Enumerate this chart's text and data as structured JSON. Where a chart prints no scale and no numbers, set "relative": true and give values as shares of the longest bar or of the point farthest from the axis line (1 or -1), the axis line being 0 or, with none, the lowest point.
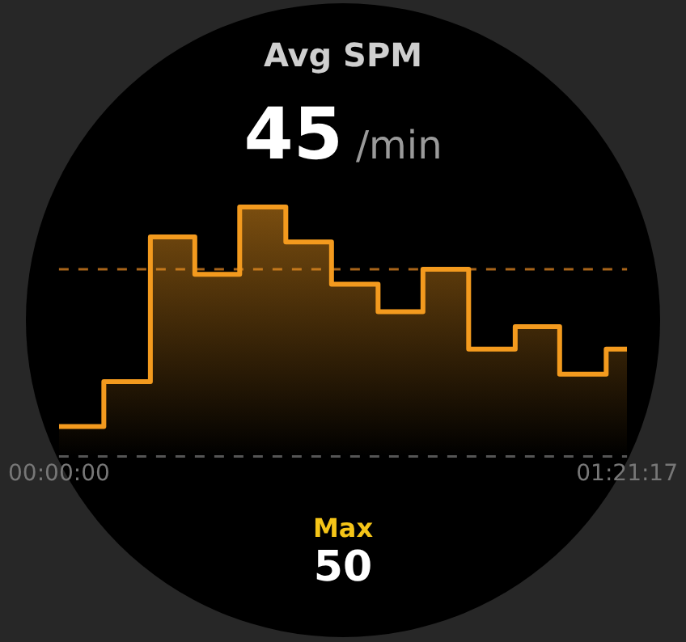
{
  "chart_data": {
    "type": "area",
    "title": "Avg SPM",
    "relative": true,
    "annotations": [
      "45",
      "/min",
      "Max",
      "50"
    ],
    "x": [
      0,
      0.107,
      0.107,
      0.218,
      0.218,
      0.324,
      0.324,
      0.431,
      0.431,
      0.541,
      0.541,
      0.65,
      0.65,
      0.761,
      0.761,
      0.868,
      0.868,
      0.977,
      0.977,
      1.088,
      1.088,
      1.194,
      1.194,
      1.305,
      1.305,
      1.35472
    ],
    "series": [
      {
        "color": "#f39a1e",
        "values": [
          0.12,
          0.12,
          0.3,
          0.3,
          0.88,
          0.88,
          0.73,
          0.73,
          1,
          1,
          0.86,
          0.86,
          0.69,
          0.69,
          0.58,
          0.58,
          0.75,
          0.75,
          0.43,
          0.43,
          0.52,
          0.52,
          0.33,
          0.33,
          0.43,
          0.43
        ]
      }
    ],
    "xlim": [
      0,
      1.35472
    ],
    "xticks": [
      {
        "value": 0,
        "label": "00:00:00"
      },
      {
        "value": 1.35472,
        "label": "01:21:17"
      }
    ],
    "ref_lines": [
      {
        "axis": "y",
        "value": 0.75,
        "color": "#a8641a",
        "line_style": "dashed"
      }
    ],
    "grid": false,
    "legend": false,
    "marker": "none",
    "line_style": "solid"
  }
}
